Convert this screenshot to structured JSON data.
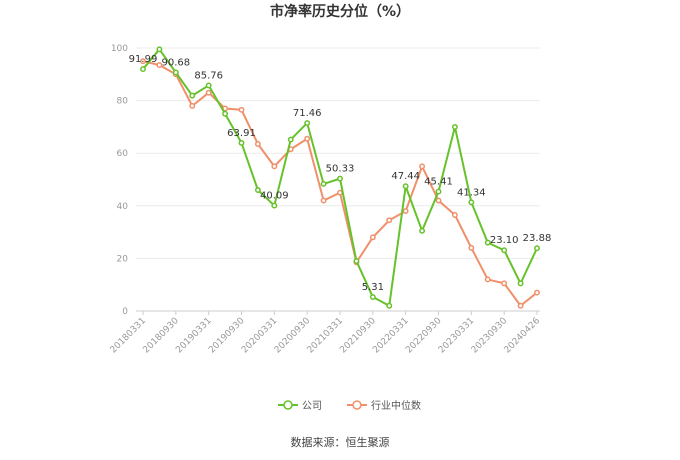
{
  "chart_data": {
    "type": "line",
    "title": "市净率历史分位（%）",
    "source": "数据来源：恒生聚源",
    "x_tick_labels": [
      "20180331",
      "20180930",
      "20190331",
      "20190930",
      "20200331",
      "20200930",
      "20210331",
      "20210930",
      "20220331",
      "20220930",
      "20230331",
      "20230930",
      "20240426"
    ],
    "ylim": [
      0,
      100
    ],
    "y_ticks": [
      0,
      20,
      40,
      60,
      80,
      100
    ],
    "grid": true,
    "legend_placement": "bottom",
    "series": [
      {
        "name": "公司",
        "color": "#66c22a",
        "values": [
          91.99,
          99.5,
          90.68,
          81.9,
          85.76,
          75.0,
          63.91,
          46.0,
          40.09,
          65.2,
          71.46,
          48.3,
          50.33,
          19.0,
          5.31,
          2.0,
          47.44,
          30.5,
          45.41,
          70.0,
          41.34,
          26.0,
          23.1,
          10.5,
          23.88
        ]
      },
      {
        "name": "行业中位数",
        "color": "#f0906a",
        "values": [
          95.0,
          93.5,
          90.0,
          78.0,
          83.0,
          77.0,
          76.5,
          63.5,
          55.0,
          61.5,
          65.5,
          42.0,
          45.0,
          18.5,
          28.0,
          34.5,
          38.0,
          55.0,
          42.0,
          36.5,
          24.0,
          12.0,
          10.5,
          2.0,
          7.0
        ]
      }
    ],
    "data_labels": [
      {
        "series": 0,
        "index": 0,
        "text": "91.99"
      },
      {
        "series": 0,
        "index": 2,
        "text": "90.68"
      },
      {
        "series": 0,
        "index": 4,
        "text": "85.76"
      },
      {
        "series": 0,
        "index": 6,
        "text": "63.91"
      },
      {
        "series": 0,
        "index": 8,
        "text": "40.09"
      },
      {
        "series": 0,
        "index": 10,
        "text": "71.46"
      },
      {
        "series": 0,
        "index": 12,
        "text": "50.33"
      },
      {
        "series": 0,
        "index": 14,
        "text": "5.31"
      },
      {
        "series": 0,
        "index": 16,
        "text": "47.44"
      },
      {
        "series": 0,
        "index": 18,
        "text": "45.41"
      },
      {
        "series": 0,
        "index": 20,
        "text": "41.34"
      },
      {
        "series": 0,
        "index": 22,
        "text": "23.10"
      },
      {
        "series": 0,
        "index": 24,
        "text": "23.88"
      }
    ]
  }
}
